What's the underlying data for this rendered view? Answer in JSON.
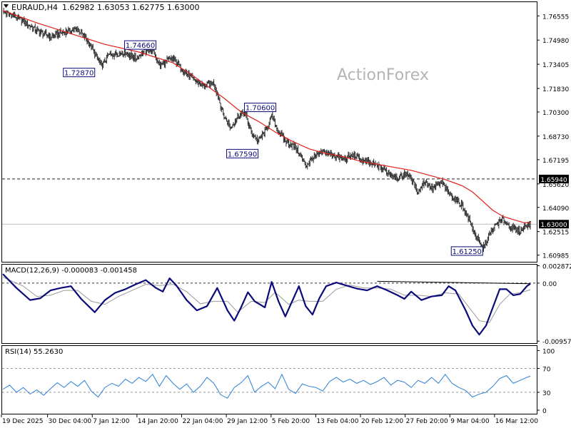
{
  "header": {
    "symbol": "EURAUD,H4",
    "ohlc": "1.62982 1.63053 1.62775 1.63000"
  },
  "watermark": "ActionForex",
  "colors": {
    "price_bars": "#2a2a2a",
    "moving_average": "#e0201a",
    "macd_line": "#0a0a7a",
    "macd_signal": "#9a9a9a",
    "macd_zero": "#333333",
    "rsi_line": "#2a7fd6",
    "support_line": "#222222",
    "current_price_line": "#bdbdbd",
    "label_border": "#0a0a7a",
    "label_text": "#0a0a7a",
    "watermark": "#b4b4b4"
  },
  "chart_data": [
    {
      "type": "ohlc",
      "name": "price",
      "x_labels": [
        "19 Dec 2025",
        "30 Dec 04:00",
        "7 Jan 12:00",
        "14 Jan 20:00",
        "22 Jan 04:00",
        "29 Jan 12:00",
        "5 Feb 20:00",
        "13 Feb 04:00",
        "20 Feb 12:00",
        "27 Feb 20:00",
        "9 Mar 04:00",
        "16 Mar 12:00"
      ],
      "y_ticks": [
        1.76555,
        1.7498,
        1.73405,
        1.7183,
        1.703,
        1.6873,
        1.67195,
        1.6562,
        1.6409,
        1.62515,
        1.60985
      ],
      "ylim": [
        1.6055,
        1.7745
      ],
      "close_path": [
        [
          0,
          1.768
        ],
        [
          3,
          1.766
        ],
        [
          6,
          1.762
        ],
        [
          10,
          1.756
        ],
        [
          14,
          1.752
        ],
        [
          18,
          1.755
        ],
        [
          22,
          1.757
        ],
        [
          25,
          1.749
        ],
        [
          27,
          1.741
        ],
        [
          29,
          1.733
        ],
        [
          31,
          1.74
        ],
        [
          34,
          1.741
        ],
        [
          36,
          1.742
        ],
        [
          39,
          1.738
        ],
        [
          41,
          1.742
        ],
        [
          44,
          1.744
        ],
        [
          46,
          1.733
        ],
        [
          48,
          1.736
        ],
        [
          50,
          1.738
        ],
        [
          53,
          1.73
        ],
        [
          56,
          1.724
        ],
        [
          59,
          1.72
        ],
        [
          62,
          1.722
        ],
        [
          65,
          1.7
        ],
        [
          67,
          1.693
        ],
        [
          69,
          1.7
        ],
        [
          71,
          1.703
        ],
        [
          73,
          1.69
        ],
        [
          75,
          1.684
        ],
        [
          77,
          1.69
        ],
        [
          79,
          1.7
        ],
        [
          81,
          1.69
        ],
        [
          83,
          1.684
        ],
        [
          86,
          1.68
        ],
        [
          89,
          1.668
        ],
        [
          91,
          1.673
        ],
        [
          94,
          1.677
        ],
        [
          97,
          1.675
        ],
        [
          100,
          1.672
        ],
        [
          103,
          1.675
        ],
        [
          106,
          1.671
        ],
        [
          110,
          1.668
        ],
        [
          113,
          1.664
        ],
        [
          116,
          1.66
        ],
        [
          119,
          1.663
        ],
        [
          122,
          1.651
        ],
        [
          124,
          1.658
        ],
        [
          126,
          1.653
        ],
        [
          129,
          1.657
        ],
        [
          131,
          1.65
        ],
        [
          133,
          1.646
        ],
        [
          135,
          1.642
        ],
        [
          137,
          1.633
        ],
        [
          139,
          1.622
        ],
        [
          141,
          1.614
        ],
        [
          143,
          1.623
        ],
        [
          145,
          1.63
        ],
        [
          147,
          1.633
        ],
        [
          149,
          1.628
        ],
        [
          152,
          1.625
        ],
        [
          154,
          1.63
        ],
        [
          155,
          1.63
        ]
      ],
      "moving_average_path": [
        [
          0,
          1.769
        ],
        [
          10,
          1.761
        ],
        [
          20,
          1.754
        ],
        [
          30,
          1.747
        ],
        [
          40,
          1.742
        ],
        [
          50,
          1.735
        ],
        [
          55,
          1.728
        ],
        [
          60,
          1.72
        ],
        [
          65,
          1.712
        ],
        [
          70,
          1.703
        ],
        [
          75,
          1.697
        ],
        [
          80,
          1.69
        ],
        [
          85,
          1.684
        ],
        [
          90,
          1.679
        ],
        [
          95,
          1.676
        ],
        [
          100,
          1.674
        ],
        [
          105,
          1.671
        ],
        [
          110,
          1.669
        ],
        [
          115,
          1.667
        ],
        [
          120,
          1.665
        ],
        [
          125,
          1.662
        ],
        [
          130,
          1.659
        ],
        [
          135,
          1.655
        ],
        [
          138,
          1.651
        ],
        [
          141,
          1.645
        ],
        [
          144,
          1.639
        ],
        [
          147,
          1.635
        ],
        [
          150,
          1.633
        ],
        [
          153,
          1.631
        ],
        [
          155,
          1.631
        ]
      ],
      "support_level": 1.6594,
      "current_price": 1.63,
      "annotations": [
        {
          "text": "1.72870",
          "bar": 27,
          "price": 1.7287,
          "anchor": "left"
        },
        {
          "text": "1.74660",
          "bar": 45,
          "price": 1.7466,
          "anchor": "left"
        },
        {
          "text": "1.70600",
          "bar": 71,
          "price": 1.706,
          "anchor": "right"
        },
        {
          "text": "1.67590",
          "bar": 75,
          "price": 1.6759,
          "anchor": "left"
        },
        {
          "text": "1.61250",
          "bar": 141,
          "price": 1.6125,
          "anchor": "left"
        }
      ],
      "axis_tags": [
        {
          "text": "1.65940",
          "price": 1.6594
        },
        {
          "text": "1.63000",
          "price": 1.63
        }
      ]
    },
    {
      "type": "line",
      "name": "macd",
      "title": "MACD(12,26,9) -0.000083 -0.001458",
      "ylim": [
        -0.0099,
        0.00305
      ],
      "y_ticks": [
        0.002872,
        0.0,
        -0.009571
      ],
      "y_tick_labels": [
        "0.002872",
        "0.00",
        "-0.009571"
      ],
      "macd_path": [
        [
          0,
          0.0015
        ],
        [
          4,
          -0.0008
        ],
        [
          8,
          -0.0028
        ],
        [
          11,
          -0.0025
        ],
        [
          14,
          -0.0012
        ],
        [
          17,
          -0.0008
        ],
        [
          20,
          -0.0005
        ],
        [
          23,
          -0.0026
        ],
        [
          27,
          -0.0048
        ],
        [
          30,
          -0.0028
        ],
        [
          33,
          -0.0016
        ],
        [
          36,
          -0.001
        ],
        [
          39,
          -0.0002
        ],
        [
          42,
          0.0005
        ],
        [
          45,
          -0.0008
        ],
        [
          47,
          -0.0014
        ],
        [
          49,
          0.0008
        ],
        [
          51,
          -0.0004
        ],
        [
          54,
          -0.0028
        ],
        [
          57,
          -0.0045
        ],
        [
          60,
          -0.0038
        ],
        [
          63,
          -0.0008
        ],
        [
          66,
          -0.0045
        ],
        [
          68,
          -0.0062
        ],
        [
          70,
          -0.004
        ],
        [
          72,
          -0.0015
        ],
        [
          74,
          -0.003
        ],
        [
          77,
          -0.004
        ],
        [
          79,
          0.0002
        ],
        [
          81,
          -0.003
        ],
        [
          83,
          -0.0055
        ],
        [
          85,
          -0.003
        ],
        [
          87,
          -0.0005
        ],
        [
          89,
          -0.0038
        ],
        [
          91,
          -0.0052
        ],
        [
          93,
          -0.0025
        ],
        [
          95,
          -0.0005
        ],
        [
          98,
          0.0001
        ],
        [
          101,
          -0.0004
        ],
        [
          104,
          -0.0009
        ],
        [
          107,
          -0.0012
        ],
        [
          110,
          -0.0005
        ],
        [
          113,
          -0.0012
        ],
        [
          116,
          -0.002
        ],
        [
          118,
          -0.0026
        ],
        [
          120,
          -0.0014
        ],
        [
          123,
          -0.0028
        ],
        [
          126,
          -0.0022
        ],
        [
          129,
          -0.002
        ],
        [
          131,
          -0.0005
        ],
        [
          133,
          -0.0012
        ],
        [
          136,
          -0.0045
        ],
        [
          138,
          -0.007
        ],
        [
          140,
          -0.0085
        ],
        [
          142,
          -0.007
        ],
        [
          144,
          -0.004
        ],
        [
          146,
          -0.001
        ],
        [
          148,
          -0.001
        ],
        [
          150,
          -0.002
        ],
        [
          152,
          -0.0018
        ],
        [
          154,
          -0.0005
        ],
        [
          155,
          -0.0001
        ]
      ],
      "signal_path": [
        [
          0,
          0.001
        ],
        [
          6,
          -0.0005
        ],
        [
          10,
          -0.0022
        ],
        [
          14,
          -0.002
        ],
        [
          18,
          -0.0012
        ],
        [
          22,
          -0.0012
        ],
        [
          26,
          -0.003
        ],
        [
          30,
          -0.0035
        ],
        [
          34,
          -0.0022
        ],
        [
          38,
          -0.0012
        ],
        [
          42,
          -0.0002
        ],
        [
          46,
          -0.0004
        ],
        [
          50,
          -0.0002
        ],
        [
          54,
          -0.0014
        ],
        [
          58,
          -0.0034
        ],
        [
          62,
          -0.003
        ],
        [
          66,
          -0.003
        ],
        [
          69,
          -0.0048
        ],
        [
          73,
          -0.003
        ],
        [
          77,
          -0.0032
        ],
        [
          80,
          -0.0015
        ],
        [
          84,
          -0.0035
        ],
        [
          87,
          -0.0028
        ],
        [
          90,
          -0.003
        ],
        [
          94,
          -0.003
        ],
        [
          98,
          -0.001
        ],
        [
          102,
          -0.0003
        ],
        [
          106,
          -0.0008
        ],
        [
          110,
          -0.0008
        ],
        [
          114,
          -0.001
        ],
        [
          118,
          -0.002
        ],
        [
          122,
          -0.002
        ],
        [
          126,
          -0.0022
        ],
        [
          130,
          -0.0016
        ],
        [
          134,
          -0.0018
        ],
        [
          137,
          -0.004
        ],
        [
          140,
          -0.0062
        ],
        [
          143,
          -0.0065
        ],
        [
          146,
          -0.0035
        ],
        [
          149,
          -0.0018
        ],
        [
          152,
          -0.0016
        ],
        [
          155,
          -0.0011
        ]
      ],
      "trendline": [
        [
          110,
          0.0003
        ],
        [
          155,
          -0.0001
        ]
      ]
    },
    {
      "type": "line",
      "name": "rsi",
      "title": "RSI(14) 55.2630",
      "ylim": [
        0,
        100
      ],
      "y_ticks": [
        100,
        70,
        30,
        0
      ],
      "levels": [
        70,
        30
      ],
      "rsi_path": [
        [
          0,
          35
        ],
        [
          2,
          42
        ],
        [
          4,
          30
        ],
        [
          6,
          38
        ],
        [
          8,
          27
        ],
        [
          10,
          34
        ],
        [
          12,
          25
        ],
        [
          14,
          36
        ],
        [
          16,
          46
        ],
        [
          18,
          38
        ],
        [
          20,
          48
        ],
        [
          22,
          40
        ],
        [
          24,
          50
        ],
        [
          26,
          32
        ],
        [
          28,
          22
        ],
        [
          30,
          38
        ],
        [
          32,
          45
        ],
        [
          34,
          40
        ],
        [
          36,
          52
        ],
        [
          38,
          45
        ],
        [
          40,
          55
        ],
        [
          42,
          48
        ],
        [
          44,
          60
        ],
        [
          46,
          40
        ],
        [
          48,
          58
        ],
        [
          50,
          45
        ],
        [
          52,
          35
        ],
        [
          54,
          44
        ],
        [
          56,
          30
        ],
        [
          58,
          40
        ],
        [
          60,
          55
        ],
        [
          62,
          45
        ],
        [
          64,
          26
        ],
        [
          66,
          20
        ],
        [
          68,
          38
        ],
        [
          70,
          46
        ],
        [
          72,
          58
        ],
        [
          74,
          30
        ],
        [
          76,
          40
        ],
        [
          78,
          47
        ],
        [
          80,
          36
        ],
        [
          82,
          60
        ],
        [
          84,
          35
        ],
        [
          86,
          28
        ],
        [
          88,
          44
        ],
        [
          90,
          40
        ],
        [
          92,
          38
        ],
        [
          94,
          32
        ],
        [
          96,
          48
        ],
        [
          98,
          55
        ],
        [
          100,
          47
        ],
        [
          102,
          52
        ],
        [
          104,
          45
        ],
        [
          106,
          50
        ],
        [
          108,
          43
        ],
        [
          110,
          48
        ],
        [
          112,
          55
        ],
        [
          114,
          42
        ],
        [
          116,
          50
        ],
        [
          118,
          47
        ],
        [
          120,
          38
        ],
        [
          122,
          50
        ],
        [
          124,
          45
        ],
        [
          126,
          55
        ],
        [
          128,
          45
        ],
        [
          130,
          60
        ],
        [
          132,
          45
        ],
        [
          134,
          38
        ],
        [
          136,
          33
        ],
        [
          138,
          22
        ],
        [
          140,
          27
        ],
        [
          142,
          30
        ],
        [
          144,
          40
        ],
        [
          146,
          53
        ],
        [
          148,
          58
        ],
        [
          150,
          45
        ],
        [
          152,
          50
        ],
        [
          154,
          55
        ],
        [
          155,
          57
        ]
      ]
    }
  ]
}
